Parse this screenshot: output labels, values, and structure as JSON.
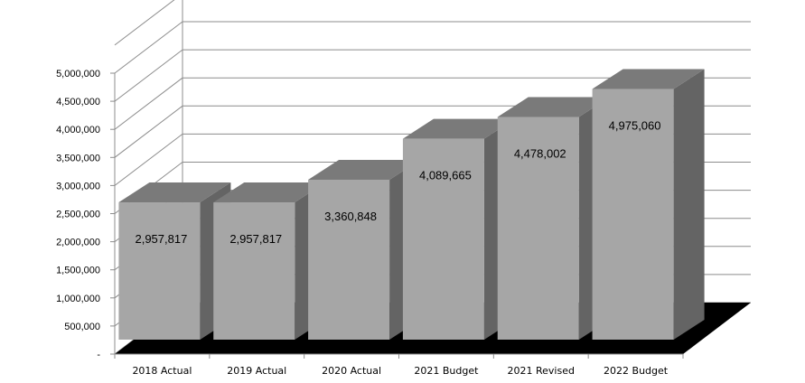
{
  "chart_data": {
    "type": "bar",
    "categories": [
      "2018 Actual",
      "2019 Actual",
      "2020 Actual",
      "2021 Budget",
      "2021 Revised",
      "2022 Budget"
    ],
    "values": [
      2957817,
      2957817,
      3360848,
      4089665,
      4478002,
      4975060
    ],
    "data_labels": [
      "2,957,817",
      "2,957,817",
      "3,360,848",
      "4,089,665",
      "4,478,002",
      "4,975,060"
    ],
    "y_ticks": [
      0,
      500000,
      1000000,
      1500000,
      2000000,
      2500000,
      3000000,
      3500000,
      4000000,
      4500000,
      5000000
    ],
    "y_tick_labels": [
      "-",
      "500,000",
      "1,000,000",
      "1,500,000",
      "2,000,000",
      "2,500,000",
      "3,000,000",
      "3,500,000",
      "4,000,000",
      "4,500,000",
      "5,000,000"
    ],
    "ylim": [
      0,
      5000000
    ],
    "title": "",
    "xlabel": "",
    "ylabel": "",
    "style": "3d-column",
    "grid": true,
    "legend": "none",
    "colors": {
      "bar_front": "#a6a6a6",
      "bar_top": "#7a7a7a",
      "bar_side": "#646464",
      "floor": "#000000",
      "grid": "#8c8c8c"
    }
  }
}
